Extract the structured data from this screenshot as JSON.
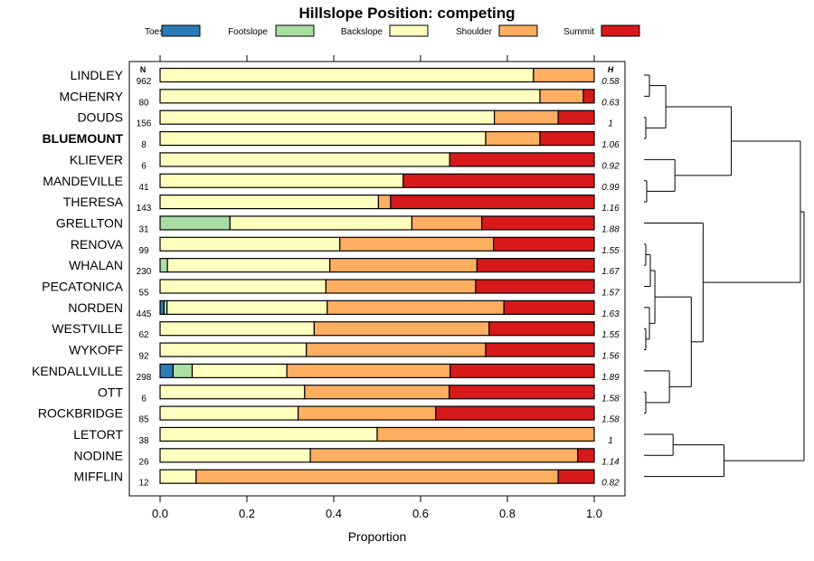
{
  "chart_data": {
    "type": "bar",
    "stacked": true,
    "orientation": "horizontal",
    "title": "Hillslope Position: competing",
    "xlabel": "Proportion",
    "xlim": [
      0,
      1
    ],
    "x_ticks": [
      "0.0",
      "0.2",
      "0.4",
      "0.6",
      "0.8",
      "1.0"
    ],
    "n_header": "N",
    "h_header": "H",
    "legend": [
      {
        "name": "Toeslope",
        "color": "#2C7BB6"
      },
      {
        "name": "Footslope",
        "color": "#ABDDA4"
      },
      {
        "name": "Backslope",
        "color": "#FFFFBF"
      },
      {
        "name": "Shoulder",
        "color": "#FDAE61"
      },
      {
        "name": "Summit",
        "color": "#D7191C"
      }
    ],
    "rows": [
      {
        "name": "LINDLEY",
        "n": "962",
        "h": "0.58",
        "bold": false,
        "values": [
          0,
          0,
          0.86,
          0.14,
          0
        ]
      },
      {
        "name": "MCHENRY",
        "n": "80",
        "h": "0.63",
        "bold": false,
        "values": [
          0,
          0,
          0.875,
          0.1,
          0.025
        ]
      },
      {
        "name": "DOUDS",
        "n": "156",
        "h": "1",
        "bold": false,
        "values": [
          0,
          0,
          0.77,
          0.147,
          0.083
        ]
      },
      {
        "name": "BLUEMOUNT",
        "n": "8",
        "h": "1.06",
        "bold": true,
        "values": [
          0,
          0,
          0.75,
          0.125,
          0.125
        ]
      },
      {
        "name": "KLIEVER",
        "n": "6",
        "h": "0.92",
        "bold": false,
        "values": [
          0,
          0,
          0.667,
          0,
          0.333
        ]
      },
      {
        "name": "MANDEVILLE",
        "n": "41",
        "h": "0.99",
        "bold": false,
        "values": [
          0,
          0,
          0.56,
          0,
          0.44
        ]
      },
      {
        "name": "THERESA",
        "n": "143",
        "h": "1.16",
        "bold": false,
        "values": [
          0,
          0,
          0.503,
          0.028,
          0.469
        ]
      },
      {
        "name": "GRELLTON",
        "n": "31",
        "h": "1.88",
        "bold": false,
        "values": [
          0,
          0.161,
          0.419,
          0.161,
          0.259
        ]
      },
      {
        "name": "RENOVA",
        "n": "99",
        "h": "1.55",
        "bold": false,
        "values": [
          0,
          0,
          0.414,
          0.354,
          0.232
        ]
      },
      {
        "name": "WHALAN",
        "n": "230",
        "h": "1.67",
        "bold": false,
        "values": [
          0,
          0.017,
          0.374,
          0.339,
          0.27
        ]
      },
      {
        "name": "PECATONICA",
        "n": "55",
        "h": "1.57",
        "bold": false,
        "values": [
          0,
          0,
          0.382,
          0.345,
          0.273
        ]
      },
      {
        "name": "NORDEN",
        "n": "445",
        "h": "1.63",
        "bold": false,
        "values": [
          0.009,
          0.007,
          0.369,
          0.407,
          0.208
        ]
      },
      {
        "name": "WESTVILLE",
        "n": "62",
        "h": "1.55",
        "bold": false,
        "values": [
          0,
          0,
          0.355,
          0.403,
          0.242
        ]
      },
      {
        "name": "WYKOFF",
        "n": "92",
        "h": "1.56",
        "bold": false,
        "values": [
          0,
          0,
          0.337,
          0.413,
          0.25
        ]
      },
      {
        "name": "KENDALLVILLE",
        "n": "298",
        "h": "1.89",
        "bold": false,
        "values": [
          0.03,
          0.044,
          0.218,
          0.376,
          0.332
        ]
      },
      {
        "name": "OTT",
        "n": "6",
        "h": "1.58",
        "bold": false,
        "values": [
          0,
          0,
          0.333,
          0.333,
          0.334
        ]
      },
      {
        "name": "ROCKBRIDGE",
        "n": "85",
        "h": "1.58",
        "bold": false,
        "values": [
          0,
          0,
          0.318,
          0.317,
          0.365
        ]
      },
      {
        "name": "LETORT",
        "n": "38",
        "h": "1",
        "bold": false,
        "values": [
          0,
          0,
          0.5,
          0.5,
          0
        ]
      },
      {
        "name": "NODINE",
        "n": "26",
        "h": "1.14",
        "bold": false,
        "values": [
          0,
          0,
          0.346,
          0.616,
          0.038
        ]
      },
      {
        "name": "MIFFLIN",
        "n": "12",
        "h": "0.82",
        "bold": false,
        "values": [
          0,
          0,
          0.083,
          0.834,
          0.083
        ]
      }
    ],
    "dendrogram": {
      "leaf_order": [
        "LINDLEY",
        "MCHENRY",
        "DOUDS",
        "BLUEMOUNT",
        "KLIEVER",
        "MANDEVILLE",
        "THERESA",
        "GRELLTON",
        "RENOVA",
        "WHALAN",
        "PECATONICA",
        "NORDEN",
        "WESTVILLE",
        "WYKOFF",
        "KENDALLVILLE",
        "OTT",
        "ROCKBRIDGE",
        "LETORT",
        "NODINE",
        "MIFFLIN"
      ],
      "merges": [
        [
          0,
          1,
          0.03
        ],
        [
          2,
          3,
          0.01
        ],
        [
          -1,
          -2,
          0.12
        ],
        [
          5,
          6,
          0.015
        ],
        [
          4,
          -4,
          0.17
        ],
        [
          -3,
          -5,
          0.48
        ],
        [
          8,
          9,
          0.01
        ],
        [
          -7,
          10,
          0.035
        ],
        [
          12,
          13,
          0.01
        ],
        [
          11,
          -9,
          0.03
        ],
        [
          -8,
          -10,
          0.06
        ],
        [
          15,
          16,
          0.01
        ],
        [
          14,
          -12,
          0.14
        ],
        [
          -11,
          -13,
          0.26
        ],
        [
          7,
          -14,
          0.325
        ],
        [
          -6,
          -15,
          0.86
        ],
        [
          17,
          18,
          0.16
        ],
        [
          19,
          -17,
          0.44
        ],
        [
          -16,
          -18,
          0.88
        ]
      ],
      "max_height": 0.9
    }
  }
}
